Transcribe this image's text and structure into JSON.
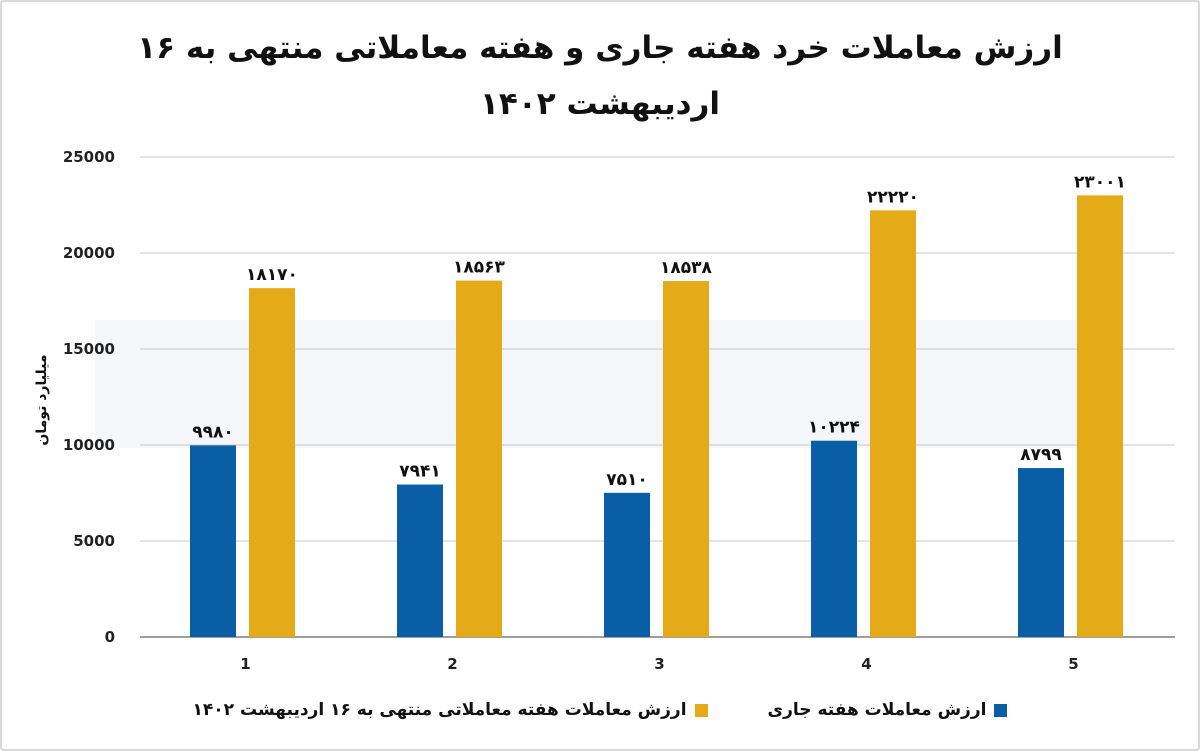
{
  "chart_data": {
    "type": "bar",
    "title": "ارزش معاملات خرد هفته جاری و هفته معاملاتی منتهی به ۱۶ اردیبهشت ۱۴۰۲",
    "xlabel": "",
    "ylabel": "میلیارد تومان",
    "categories": [
      "1",
      "2",
      "3",
      "4",
      "5"
    ],
    "ylim": [
      0,
      25000
    ],
    "yticks": [
      0,
      5000,
      10000,
      15000,
      20000,
      25000
    ],
    "ytick_labels": [
      "0",
      "5000",
      "10000",
      "15000",
      "20000",
      "25000"
    ],
    "grid": true,
    "legend_position": "bottom",
    "series": [
      {
        "name": "ارزش معاملات هفته جاری",
        "color": "#0a5ea6",
        "values": [
          9980,
          7941,
          7510,
          10224,
          8799
        ],
        "labels": [
          "۹۹۸۰",
          "۷۹۴۱",
          "۷۵۱۰",
          "۱۰۲۲۴",
          "۸۷۹۹"
        ]
      },
      {
        "name": "ارزش معاملات هفته معاملاتی منتهی به ۱۶ اردیبهشت ۱۴۰۲",
        "color": "#e5aa17",
        "values": [
          18170,
          18563,
          18538,
          22220,
          23001
        ],
        "labels": [
          "۱۸۱۷۰",
          "۱۸۵۶۳",
          "۱۸۵۳۸",
          "۲۲۲۲۰",
          "۲۳۰۰۱"
        ]
      }
    ]
  }
}
